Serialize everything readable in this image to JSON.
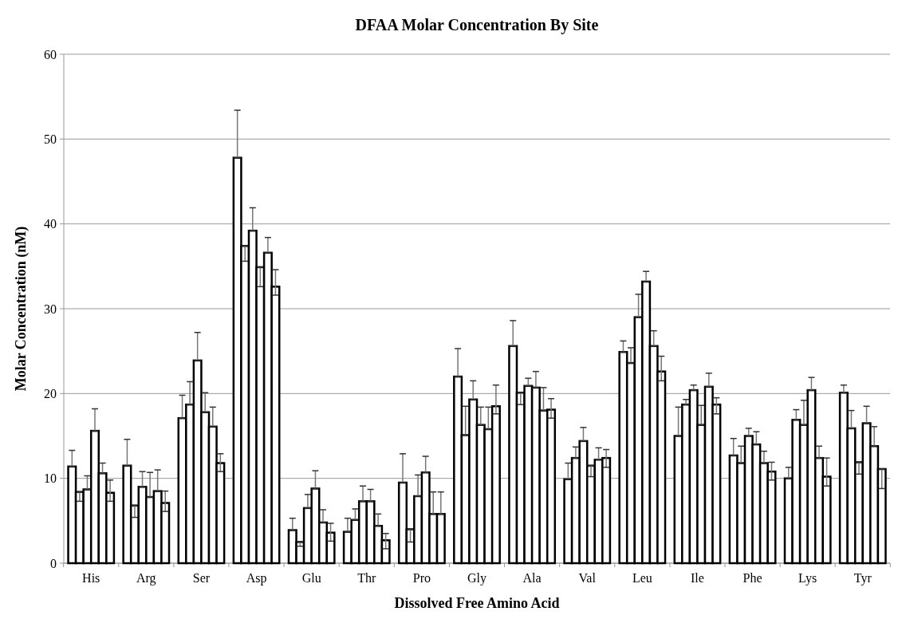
{
  "chart_data": {
    "type": "bar",
    "title": "DFAA Molar Concentration By Site",
    "xlabel": "Dissolved Free Amino Acid",
    "ylabel": "Molar Concentration (nM)",
    "categories": [
      "His",
      "Arg",
      "Ser",
      "Asp",
      "Glu",
      "Thr",
      "Pro",
      "Gly",
      "Ala",
      "Val",
      "Leu",
      "Ile",
      "Phe",
      "Lys",
      "Tyr"
    ],
    "ylim": [
      0,
      60
    ],
    "yticks": [
      0,
      10,
      20,
      30,
      40,
      50,
      60
    ],
    "grid": "y",
    "series": [
      {
        "color": "#ffffff",
        "values": [
          11.4,
          11.5,
          17.1,
          47.8,
          3.9,
          3.7,
          9.5,
          22.0,
          25.6,
          9.9,
          24.9,
          15.0,
          12.7,
          10.0,
          20.1
        ],
        "errors": [
          [
            11.4,
            13.3
          ],
          [
            11.5,
            14.6
          ],
          [
            17.1,
            19.8
          ],
          [
            47.8,
            53.4
          ],
          [
            3.9,
            5.3
          ],
          [
            3.7,
            5.3
          ],
          [
            9.5,
            12.9
          ],
          [
            22.0,
            25.3
          ],
          [
            25.6,
            28.6
          ],
          [
            9.9,
            11.8
          ],
          [
            24.9,
            26.2
          ],
          [
            15.0,
            18.4
          ],
          [
            12.7,
            14.7
          ],
          [
            10.0,
            11.3
          ],
          [
            20.1,
            21.0
          ]
        ]
      },
      {
        "color": "#ffffff",
        "values": [
          8.4,
          6.8,
          18.7,
          37.4,
          2.5,
          5.1,
          4.0,
          15.1,
          20.1,
          12.4,
          23.6,
          18.7,
          11.8,
          16.9,
          15.9
        ],
        "errors": [
          [
            7.3,
            8.4
          ],
          [
            5.4,
            6.8
          ],
          [
            18.7,
            21.4
          ],
          [
            35.6,
            37.4
          ],
          [
            2.0,
            2.5
          ],
          [
            5.1,
            6.4
          ],
          [
            2.5,
            4.0
          ],
          [
            15.1,
            18.5
          ],
          [
            18.7,
            20.1
          ],
          [
            12.4,
            13.7
          ],
          [
            23.6,
            25.4
          ],
          [
            18.7,
            19.3
          ],
          [
            11.8,
            13.8
          ],
          [
            16.9,
            18.1
          ],
          [
            15.9,
            18.0
          ]
        ]
      },
      {
        "color": "#ffffff",
        "values": [
          8.7,
          9.0,
          23.9,
          39.2,
          6.5,
          7.3,
          7.9,
          19.3,
          20.9,
          14.4,
          29.0,
          20.4,
          15.0,
          16.3,
          11.9
        ],
        "errors": [
          [
            8.7,
            10.3
          ],
          [
            9.0,
            10.8
          ],
          [
            23.9,
            27.2
          ],
          [
            39.2,
            41.9
          ],
          [
            6.5,
            8.1
          ],
          [
            7.3,
            9.1
          ],
          [
            7.9,
            10.4
          ],
          [
            19.3,
            21.5
          ],
          [
            20.9,
            21.8
          ],
          [
            14.4,
            16.0
          ],
          [
            29.0,
            31.7
          ],
          [
            20.4,
            21.0
          ],
          [
            15.0,
            15.9
          ],
          [
            16.3,
            19.2
          ],
          [
            10.5,
            11.9
          ]
        ]
      },
      {
        "color": "#ffffff",
        "values": [
          15.6,
          7.8,
          17.8,
          34.9,
          8.8,
          7.3,
          10.7,
          16.3,
          20.7,
          11.5,
          33.2,
          16.3,
          14.0,
          20.4,
          16.5
        ],
        "errors": [
          [
            15.6,
            18.2
          ],
          [
            7.8,
            10.7
          ],
          [
            17.8,
            20.1
          ],
          [
            32.6,
            34.9
          ],
          [
            8.8,
            10.9
          ],
          [
            7.3,
            8.7
          ],
          [
            10.7,
            12.6
          ],
          [
            16.3,
            18.4
          ],
          [
            20.7,
            22.6
          ],
          [
            10.2,
            11.5
          ],
          [
            33.2,
            34.4
          ],
          [
            16.3,
            18.6
          ],
          [
            14.0,
            15.5
          ],
          [
            20.4,
            21.9
          ],
          [
            16.5,
            18.5
          ]
        ]
      },
      {
        "color": "#ffffff",
        "values": [
          10.6,
          8.5,
          16.1,
          36.6,
          4.8,
          4.4,
          5.8,
          15.8,
          18.0,
          12.2,
          25.6,
          20.8,
          11.8,
          12.4,
          13.8
        ],
        "errors": [
          [
            10.6,
            11.8
          ],
          [
            8.5,
            11.0
          ],
          [
            16.1,
            18.4
          ],
          [
            36.6,
            38.4
          ],
          [
            4.8,
            6.3
          ],
          [
            4.4,
            5.8
          ],
          [
            5.8,
            8.4
          ],
          [
            15.8,
            18.4
          ],
          [
            18.0,
            20.7
          ],
          [
            12.2,
            13.6
          ],
          [
            25.6,
            27.4
          ],
          [
            20.8,
            22.4
          ],
          [
            11.8,
            13.2
          ],
          [
            12.4,
            13.8
          ],
          [
            13.8,
            16.1
          ]
        ]
      },
      {
        "color": "#ffffff",
        "values": [
          8.3,
          7.1,
          11.8,
          32.6,
          3.6,
          2.7,
          5.8,
          18.5,
          18.1,
          12.4,
          22.6,
          18.7,
          10.8,
          10.2,
          11.1
        ],
        "errors": [
          [
            7.3,
            9.8
          ],
          [
            6.1,
            8.5
          ],
          [
            10.8,
            12.9
          ],
          [
            31.6,
            34.6
          ],
          [
            2.6,
            4.7
          ],
          [
            1.7,
            3.5
          ],
          [
            5.8,
            8.4
          ],
          [
            17.6,
            21.0
          ],
          [
            17.1,
            19.4
          ],
          [
            11.3,
            13.4
          ],
          [
            21.5,
            24.4
          ],
          [
            17.6,
            19.5
          ],
          [
            9.8,
            11.9
          ],
          [
            9.1,
            12.4
          ],
          [
            8.8,
            11.1
          ]
        ]
      }
    ]
  }
}
